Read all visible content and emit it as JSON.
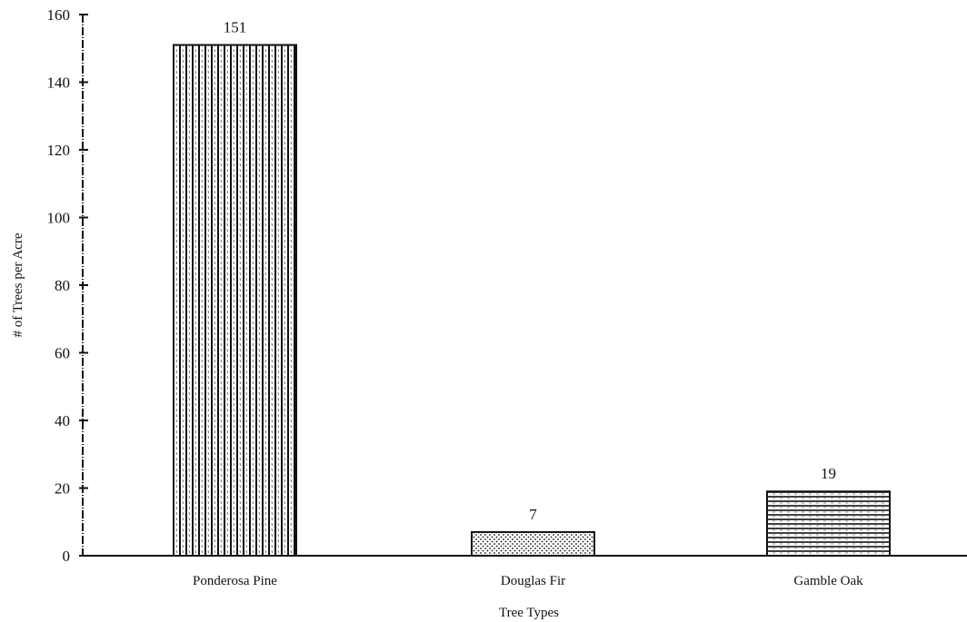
{
  "chart_data": {
    "type": "bar",
    "title": "",
    "xlabel": "Tree Types",
    "ylabel": "# of Trees per Acre",
    "categories": [
      "Ponderosa Pine",
      "Douglas Fir",
      "Gamble Oak"
    ],
    "values": [
      151,
      7,
      19
    ],
    "data_labels": [
      "151",
      "7",
      "19"
    ],
    "ylim": [
      0,
      160
    ],
    "yticks": [
      0,
      20,
      40,
      60,
      80,
      100,
      120,
      140,
      160
    ],
    "ytick_labels": [
      "0",
      "20",
      "40",
      "60",
      "80",
      "100",
      "120",
      "140",
      "160"
    ],
    "grid": false,
    "legend": "none",
    "bar_patterns": [
      "vertical-hatch",
      "dots",
      "horizontal-hatch"
    ],
    "colors": {
      "ink": "#111111",
      "background": "#ffffff"
    }
  }
}
